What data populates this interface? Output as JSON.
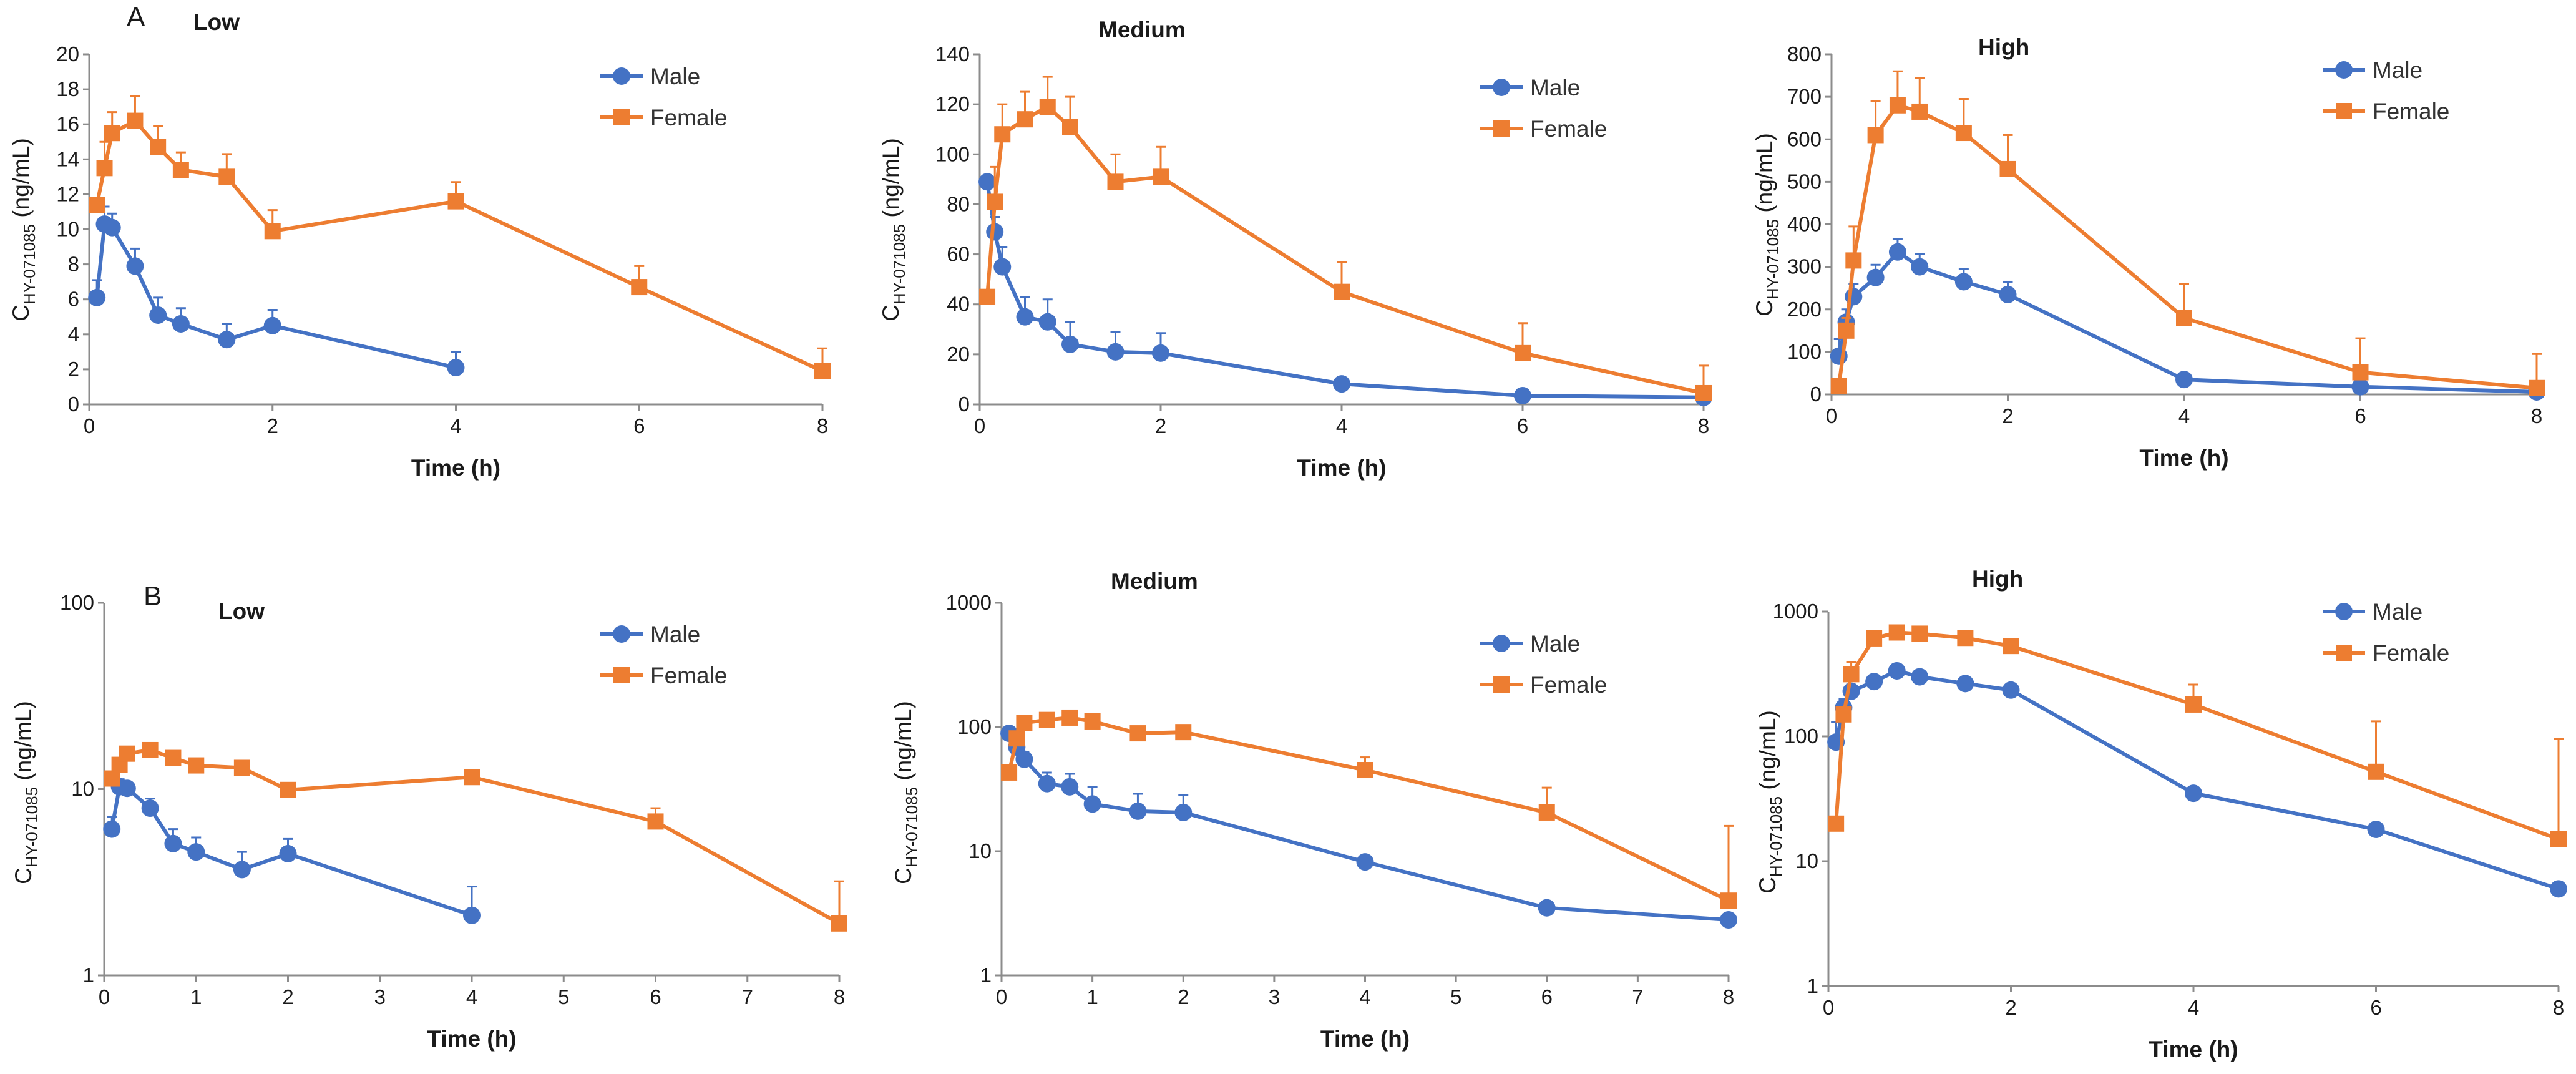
{
  "figure": {
    "series_colors": {
      "Male": "#4472c4",
      "Female": "#ed7d31"
    },
    "row_labels": [
      "A",
      "B"
    ]
  },
  "chart_data": [
    {
      "type": "line",
      "panel": "A",
      "title": "Low",
      "yscale": "linear",
      "xlabel": "Time (h)",
      "ylabel": "C",
      "ylabel_sub": "HY-071085",
      "ylabel_unit": " (ng/mL)",
      "xlim": [
        0,
        8
      ],
      "xticks": [
        0,
        2,
        4,
        6,
        8
      ],
      "ylim": [
        0,
        20
      ],
      "yticks": [
        0,
        2,
        4,
        6,
        8,
        10,
        12,
        14,
        16,
        18,
        20
      ],
      "legend": [
        "Male",
        "Female"
      ],
      "series": [
        {
          "name": "Male",
          "marker": "circle",
          "x": [
            0.083,
            0.167,
            0.25,
            0.5,
            0.75,
            1,
            1.5,
            2,
            4
          ],
          "y": [
            6.1,
            10.3,
            10.1,
            7.9,
            5.1,
            4.6,
            3.7,
            4.5,
            2.1
          ],
          "err": [
            1.0,
            1.0,
            0.8,
            1.0,
            1.0,
            0.9,
            0.9,
            0.9,
            0.9
          ]
        },
        {
          "name": "Female",
          "marker": "square",
          "x": [
            0.083,
            0.167,
            0.25,
            0.5,
            0.75,
            1,
            1.5,
            2,
            4,
            6,
            8
          ],
          "y": [
            11.4,
            13.5,
            15.5,
            16.2,
            14.7,
            13.4,
            13.0,
            9.9,
            11.6,
            6.7,
            1.9
          ],
          "err": [
            0,
            1.5,
            1.2,
            1.4,
            1.2,
            1.0,
            1.3,
            1.2,
            1.1,
            1.2,
            1.3
          ]
        }
      ]
    },
    {
      "type": "line",
      "panel": "A",
      "title": "Medium",
      "yscale": "linear",
      "xlabel": "Time (h)",
      "ylabel": "C",
      "ylabel_sub": "HY-071085",
      "ylabel_unit": " (ng/mL)",
      "xlim": [
        0,
        8
      ],
      "xticks": [
        0,
        2,
        4,
        6,
        8
      ],
      "ylim": [
        0,
        140
      ],
      "yticks": [
        0,
        20,
        40,
        60,
        80,
        100,
        120,
        140
      ],
      "legend": [
        "Male",
        "Female"
      ],
      "series": [
        {
          "name": "Male",
          "marker": "circle",
          "x": [
            0.083,
            0.167,
            0.25,
            0.5,
            0.75,
            1,
            1.5,
            2,
            4,
            6,
            8
          ],
          "y": [
            89,
            69,
            55,
            35,
            33,
            24,
            21,
            20.5,
            8.2,
            3.5,
            2.8
          ],
          "err": [
            0,
            6,
            8,
            8,
            9,
            9,
            8,
            8,
            0,
            0,
            0
          ]
        },
        {
          "name": "Female",
          "marker": "square",
          "x": [
            0.083,
            0.167,
            0.25,
            0.5,
            0.75,
            1,
            1.5,
            2,
            4,
            6,
            8
          ],
          "y": [
            43,
            81,
            108,
            114,
            119,
            111,
            89,
            91,
            45,
            20.5,
            4.5
          ],
          "err": [
            0,
            14,
            12,
            11,
            12,
            12,
            11,
            12,
            12,
            12,
            11
          ]
        }
      ]
    },
    {
      "type": "line",
      "panel": "A",
      "title": "High",
      "yscale": "linear",
      "xlabel": "Time (h)",
      "ylabel": "C",
      "ylabel_sub": "HY-071085",
      "ylabel_unit": " (ng/mL)",
      "xlim": [
        0,
        8
      ],
      "xticks": [
        0,
        2,
        4,
        6,
        8
      ],
      "ylim": [
        0,
        800
      ],
      "yticks": [
        0,
        100,
        200,
        300,
        400,
        500,
        600,
        700,
        800
      ],
      "legend": [
        "Male",
        "Female"
      ],
      "series": [
        {
          "name": "Male",
          "marker": "circle",
          "x": [
            0.083,
            0.167,
            0.25,
            0.5,
            0.75,
            1,
            1.5,
            2,
            4,
            6,
            8
          ],
          "y": [
            90,
            170,
            230,
            275,
            335,
            300,
            265,
            235,
            35,
            18,
            6
          ],
          "err": [
            40,
            30,
            30,
            30,
            30,
            30,
            30,
            30,
            0,
            0,
            0
          ]
        },
        {
          "name": "Female",
          "marker": "square",
          "x": [
            0.083,
            0.167,
            0.25,
            0.5,
            0.75,
            1,
            1.5,
            2,
            4,
            6,
            8
          ],
          "y": [
            20,
            150,
            315,
            610,
            680,
            665,
            615,
            530,
            180,
            52,
            15
          ],
          "err": [
            0,
            30,
            80,
            80,
            80,
            80,
            80,
            80,
            80,
            80,
            80
          ]
        }
      ]
    },
    {
      "type": "line",
      "panel": "B",
      "title": "Low",
      "yscale": "log",
      "xlabel": "Time (h)",
      "ylabel": "C",
      "ylabel_sub": "HY-071085",
      "ylabel_unit": " (ng/mL)",
      "xlim": [
        0,
        8
      ],
      "xticks": [
        0,
        1,
        2,
        3,
        4,
        5,
        6,
        7,
        8
      ],
      "ylim": [
        1,
        100
      ],
      "yticks": [
        1,
        10,
        100
      ],
      "legend": [
        "Male",
        "Female"
      ],
      "series": [
        {
          "name": "Male",
          "marker": "circle",
          "x": [
            0.083,
            0.167,
            0.25,
            0.5,
            0.75,
            1,
            1.5,
            2,
            4
          ],
          "y": [
            6.1,
            10.3,
            10.1,
            7.9,
            5.1,
            4.6,
            3.7,
            4.5,
            2.1
          ],
          "err": [
            1.0,
            1.0,
            0.8,
            1.0,
            1.0,
            0.9,
            0.9,
            0.9,
            0.9
          ]
        },
        {
          "name": "Female",
          "marker": "square",
          "x": [
            0.083,
            0.167,
            0.25,
            0.5,
            0.75,
            1,
            1.5,
            2,
            4,
            6,
            8
          ],
          "y": [
            11.4,
            13.5,
            15.5,
            16.2,
            14.7,
            13.4,
            13.0,
            9.9,
            11.6,
            6.7,
            1.9
          ],
          "err": [
            0,
            0,
            0,
            0,
            0,
            0,
            0,
            0,
            0,
            1.2,
            1.3
          ]
        }
      ]
    },
    {
      "type": "line",
      "panel": "B",
      "title": "Medium",
      "yscale": "log",
      "xlabel": "Time (h)",
      "ylabel": "C",
      "ylabel_sub": "HY-071085",
      "ylabel_unit": " (ng/mL)",
      "xlim": [
        0,
        8
      ],
      "xticks": [
        0,
        1,
        2,
        3,
        4,
        5,
        6,
        7,
        8
      ],
      "ylim": [
        1,
        1000
      ],
      "yticks": [
        1,
        10,
        100,
        1000
      ],
      "legend": [
        "Male",
        "Female"
      ],
      "series": [
        {
          "name": "Male",
          "marker": "circle",
          "x": [
            0.083,
            0.167,
            0.25,
            0.5,
            0.75,
            1,
            1.5,
            2,
            4,
            6,
            8
          ],
          "y": [
            89,
            69,
            55,
            35,
            33,
            24,
            21,
            20.5,
            8.2,
            3.5,
            2.8
          ],
          "err": [
            0,
            6,
            8,
            8,
            9,
            9,
            8,
            8,
            0,
            0,
            0
          ]
        },
        {
          "name": "Female",
          "marker": "square",
          "x": [
            0.083,
            0.167,
            0.25,
            0.5,
            0.75,
            1,
            1.5,
            2,
            4,
            6,
            8
          ],
          "y": [
            43,
            81,
            108,
            114,
            119,
            111,
            89,
            91,
            45,
            20.5,
            4.0
          ],
          "err": [
            0,
            0,
            0,
            0,
            0,
            0,
            0,
            0,
            12,
            12,
            12
          ]
        }
      ]
    },
    {
      "type": "line",
      "panel": "B",
      "title": "High",
      "yscale": "log",
      "xlabel": "Time (h)",
      "ylabel": "C",
      "ylabel_sub": "HY-071085",
      "ylabel_unit": " (ng/mL)",
      "xlim": [
        0,
        8
      ],
      "xticks": [
        0,
        2,
        4,
        6,
        8
      ],
      "ylim": [
        1,
        1000
      ],
      "yticks": [
        1,
        10,
        100,
        1000
      ],
      "legend": [
        "Male",
        "Female"
      ],
      "series": [
        {
          "name": "Male",
          "marker": "circle",
          "x": [
            0.083,
            0.167,
            0.25,
            0.5,
            0.75,
            1,
            1.5,
            2,
            4,
            6,
            8
          ],
          "y": [
            90,
            170,
            230,
            275,
            335,
            300,
            265,
            235,
            35,
            18,
            6
          ],
          "err": [
            40,
            30,
            30,
            30,
            0,
            0,
            30,
            30,
            0,
            0,
            0
          ]
        },
        {
          "name": "Female",
          "marker": "square",
          "x": [
            0.083,
            0.167,
            0.25,
            0.5,
            0.75,
            1,
            1.5,
            2,
            4,
            6,
            8
          ],
          "y": [
            20,
            150,
            315,
            610,
            680,
            665,
            615,
            530,
            180,
            52,
            15
          ],
          "err": [
            0,
            0,
            80,
            0,
            0,
            0,
            0,
            0,
            80,
            80,
            80
          ]
        }
      ]
    }
  ]
}
